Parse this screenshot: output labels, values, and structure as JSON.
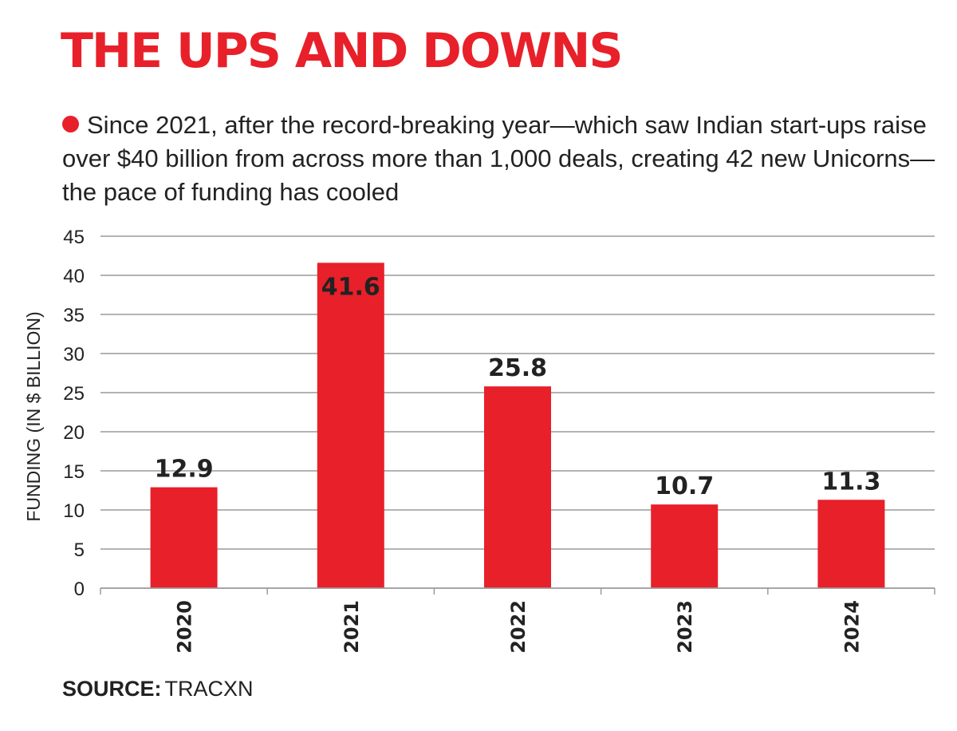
{
  "header": {
    "title": "THE UPS AND DOWNS",
    "subtitle": "Since 2021, after the record-breaking year—which saw Indian start-ups raise over $40 billion from across more than 1,000 deals, creating 42 new Unicorns—the pace of funding has cooled"
  },
  "footer": {
    "source_label": "SOURCE:",
    "source_value": "TRACXN"
  },
  "colors": {
    "accent": "#e8202a",
    "grid": "#9a9a9a",
    "text": "#222222"
  },
  "chart_data": {
    "type": "bar",
    "categories": [
      "2020",
      "2021",
      "2022",
      "2023",
      "2024"
    ],
    "values": [
      12.9,
      41.6,
      25.8,
      10.7,
      11.3
    ],
    "data_labels": [
      "12.9",
      "41.6",
      "25.8",
      "10.7",
      "11.3"
    ],
    "ylabel": "FUNDING (IN $ BILLION)",
    "ylim": [
      0,
      45
    ],
    "yticks": [
      0,
      5,
      10,
      15,
      20,
      25,
      30,
      35,
      40,
      45
    ],
    "grid": true,
    "bar_color": "#e8202a"
  }
}
